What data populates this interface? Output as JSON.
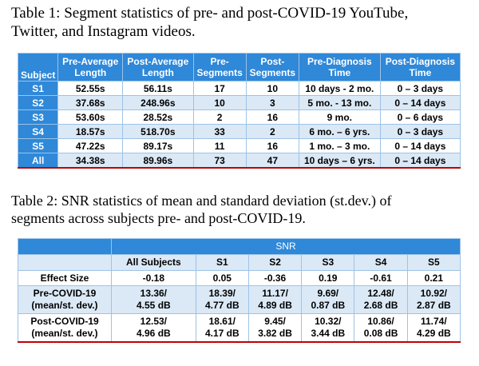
{
  "table1": {
    "caption_line1": "Table 1: Segment statistics of pre- and post-COVID-19 YouTube,",
    "caption_line2": "Twitter, and Instagram videos.",
    "headers": [
      [
        "Subject",
        ""
      ],
      [
        "Pre-Average",
        "Length"
      ],
      [
        "Post-Average",
        "Length"
      ],
      [
        "Pre-",
        "Segments"
      ],
      [
        "Post-",
        "Segments"
      ],
      [
        "Pre-Diagnosis",
        "Time"
      ],
      [
        "Post-Diagnosis",
        "Time"
      ]
    ],
    "rows": [
      [
        "S1",
        "52.55s",
        "56.11s",
        "17",
        "10",
        "10 days - 2 mo.",
        "0 – 3 days"
      ],
      [
        "S2",
        "37.68s",
        "248.96s",
        "10",
        "3",
        "5 mo. - 13 mo.",
        "0 – 14 days"
      ],
      [
        "S3",
        "53.60s",
        "28.52s",
        "2",
        "16",
        "9 mo.",
        "0 – 6 days"
      ],
      [
        "S4",
        "18.57s",
        "518.70s",
        "33",
        "2",
        "6 mo. – 6 yrs.",
        "0 – 3 days"
      ],
      [
        "S5",
        "47.22s",
        "89.17s",
        "11",
        "16",
        "1 mo. – 3 mo.",
        "0 – 14 days"
      ],
      [
        "All",
        "34.38s",
        "89.96s",
        "73",
        "47",
        "10 days – 6 yrs.",
        "0 – 14 days"
      ]
    ]
  },
  "table2": {
    "caption_line1": "Table 2: SNR statistics of mean and standard deviation (st.dev.) of",
    "caption_line2": "segments across subjects pre- and post-COVID-19.",
    "group_header": "SNR",
    "col_headers": [
      "All Subjects",
      "S1",
      "S2",
      "S3",
      "S4",
      "S5"
    ],
    "rows": [
      {
        "label1": "Effect Size",
        "label2": "",
        "cells": [
          [
            "-0.18",
            ""
          ],
          [
            "0.05",
            ""
          ],
          [
            "-0.36",
            ""
          ],
          [
            "0.19",
            ""
          ],
          [
            "-0.61",
            ""
          ],
          [
            "0.21",
            ""
          ]
        ]
      },
      {
        "label1": "Pre-COVID-19",
        "label2": "(mean/st. dev.)",
        "cells": [
          [
            "13.36/",
            "4.55 dB"
          ],
          [
            "18.39/",
            "4.77 dB"
          ],
          [
            "11.17/",
            "4.89 dB"
          ],
          [
            "9.69/",
            "0.87 dB"
          ],
          [
            "12.48/",
            "2.68 dB"
          ],
          [
            "10.92/",
            "2.87 dB"
          ]
        ]
      },
      {
        "label1": "Post-COVID-19",
        "label2": "(mean/st. dev.)",
        "cells": [
          [
            "12.53/",
            "4.96 dB"
          ],
          [
            "18.61/",
            "4.17 dB"
          ],
          [
            "9.45/",
            "3.82 dB"
          ],
          [
            "10.32/",
            "3.44 dB"
          ],
          [
            "10.86/",
            "0.08 dB"
          ],
          [
            "11.74/",
            "4.29 dB"
          ]
        ]
      }
    ]
  }
}
